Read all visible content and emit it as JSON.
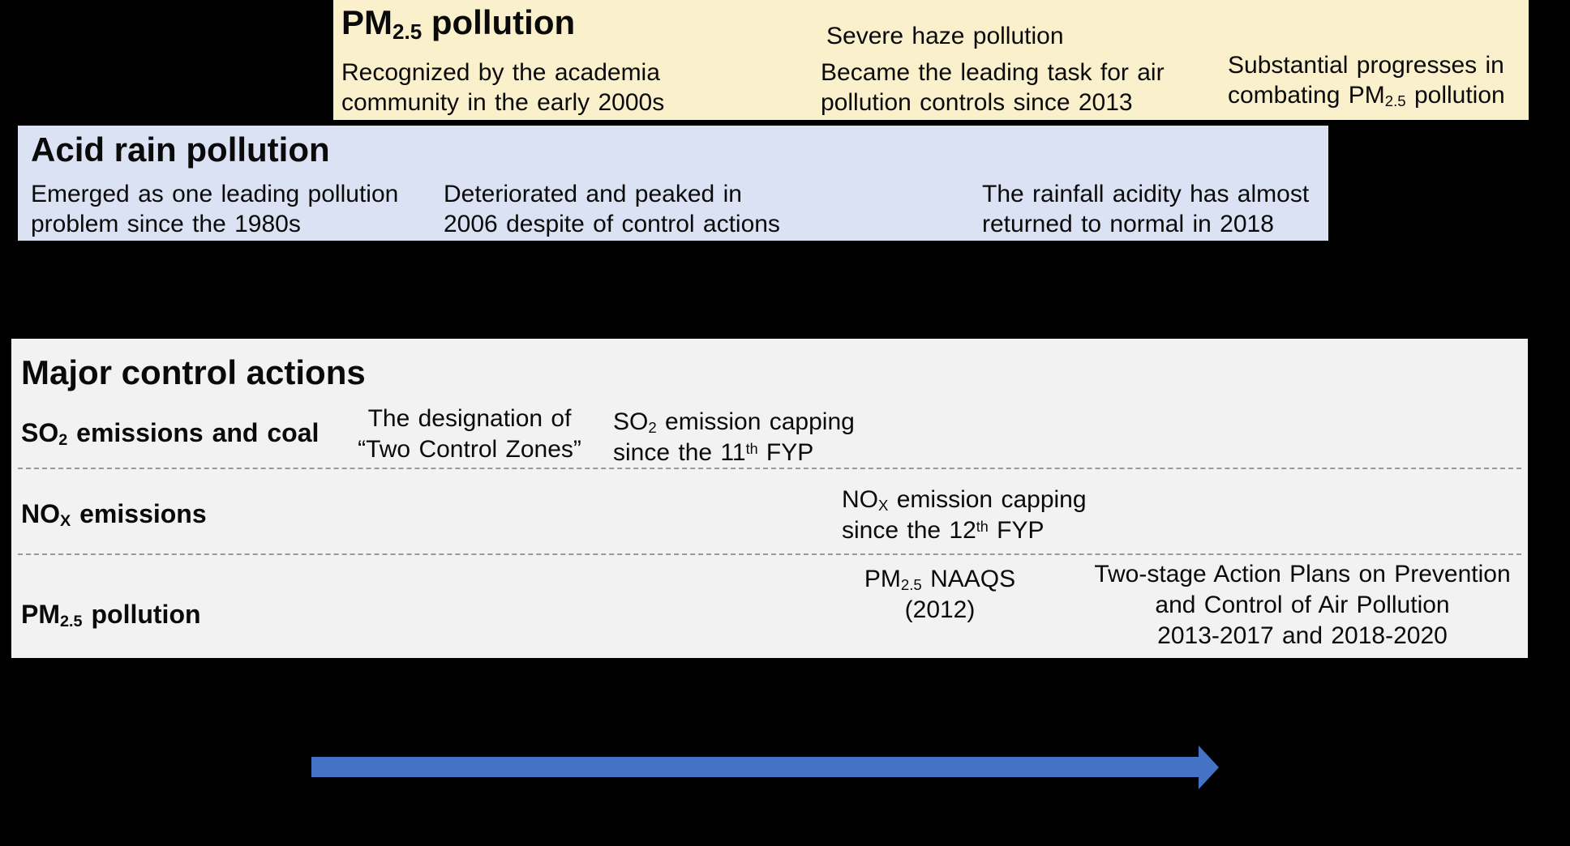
{
  "colors": {
    "background": "#000000",
    "pm_band_bg": "#FBF0CC",
    "acid_band_bg": "#DAE2F3",
    "panel_bg": "#F2F2F2",
    "arrow": "#4472C4",
    "divider": "#999999",
    "text": "#0A0A0A"
  },
  "pm_band": {
    "title": {
      "pre": "PM",
      "sub": "2.5",
      "post": " pollution"
    },
    "col1_line1": "Recognized by the academia",
    "col1_line2": "community in the early 2000s",
    "col2_heading": "Severe haze pollution",
    "col2_line1": "Became the leading task for air",
    "col2_line2": "pollution controls since 2013",
    "col3_line1": "Substantial progresses in",
    "col3_line2": {
      "pre": "combating PM",
      "sub": "2.5",
      "post": " pollution"
    }
  },
  "acid_band": {
    "title": "Acid rain pollution",
    "col1_line1": "Emerged as one leading pollution",
    "col1_line2": "problem since the 1980s",
    "col2_line1": "Deteriorated and peaked in",
    "col2_line2": "2006 despite of control actions",
    "col3_line1": "The rainfall acidity has almost",
    "col3_line2": "returned to normal in 2018"
  },
  "actions_panel": {
    "title": "Major control actions",
    "row_so2": {
      "label": {
        "pre": "SO",
        "sub": "2",
        "post": " emissions and coal"
      },
      "item1_line1": "The designation of",
      "item1_line2": "“Two Control Zones”",
      "item2_line1": {
        "pre": "SO",
        "sub": "2",
        "post": " emission capping"
      },
      "item2_line2": {
        "pre": "since the 11",
        "sup": "th",
        "post": " FYP"
      }
    },
    "row_nox": {
      "label": {
        "pre": "NO",
        "sub": "X",
        "post": " emissions"
      },
      "item1_line1": {
        "pre": "NO",
        "sub": "X",
        "post": " emission capping"
      },
      "item1_line2": {
        "pre": "since the 12",
        "sup": "th",
        "post": " FYP"
      }
    },
    "row_pm25": {
      "label": {
        "pre": "PM",
        "sub": "2.5",
        "post": " pollution"
      },
      "item1_line1": {
        "pre": "PM",
        "sub": "2.5",
        "post": " NAAQS"
      },
      "item1_line2": "(2012)",
      "item2_line1": "Two-stage Action Plans on Prevention",
      "item2_line2": "and Control of Air Pollution",
      "item2_line3": "2013-2017 and 2018-2020"
    }
  }
}
